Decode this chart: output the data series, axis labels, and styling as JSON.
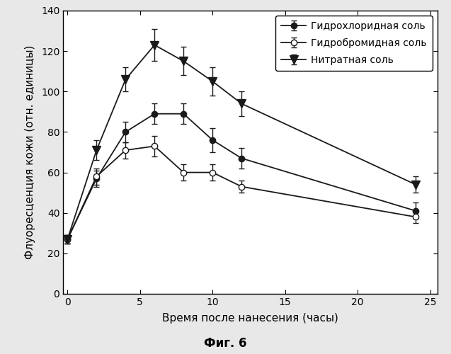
{
  "title": "",
  "xlabel": "Время после нанесения (часы)",
  "ylabel": "Флуоресценция кожи (отн. единицы)",
  "caption": "Фиг. 6",
  "xlim": [
    -0.3,
    25.5
  ],
  "ylim": [
    0,
    140
  ],
  "xticks": [
    0,
    5,
    10,
    15,
    20,
    25
  ],
  "yticks": [
    0,
    20,
    40,
    60,
    80,
    100,
    120,
    140
  ],
  "series": [
    {
      "label": "Гидрохлоридная соль",
      "x": [
        0,
        2,
        4,
        6,
        8,
        10,
        12,
        24
      ],
      "y": [
        27,
        57,
        80,
        89,
        89,
        76,
        67,
        41
      ],
      "yerr": [
        2,
        4,
        5,
        5,
        5,
        6,
        5,
        4
      ],
      "marker": "o",
      "markerfacecolor": "#1a1a1a",
      "markeredgecolor": "#1a1a1a",
      "color": "#1a1a1a",
      "markersize": 6
    },
    {
      "label": "Гидробромидная соль",
      "x": [
        0,
        2,
        4,
        6,
        8,
        10,
        12,
        24
      ],
      "y": [
        27,
        58,
        71,
        73,
        60,
        60,
        53,
        38
      ],
      "yerr": [
        2,
        4,
        4,
        5,
        4,
        4,
        3,
        3
      ],
      "marker": "o",
      "markerfacecolor": "white",
      "markeredgecolor": "#1a1a1a",
      "color": "#1a1a1a",
      "markersize": 6
    },
    {
      "label": "Нитратная соль",
      "x": [
        0,
        2,
        4,
        6,
        8,
        10,
        12,
        24
      ],
      "y": [
        27,
        71,
        106,
        123,
        115,
        105,
        94,
        54
      ],
      "yerr": [
        2,
        5,
        6,
        8,
        7,
        7,
        6,
        4
      ],
      "marker": "v",
      "markerfacecolor": "#1a1a1a",
      "markeredgecolor": "#1a1a1a",
      "color": "#1a1a1a",
      "markersize": 8
    }
  ],
  "fig_background": "#e8e8e8",
  "plot_background": "white",
  "legend_loc": "upper right",
  "font_size": 10,
  "tick_font_size": 10,
  "label_font_size": 11,
  "caption_font_size": 12
}
